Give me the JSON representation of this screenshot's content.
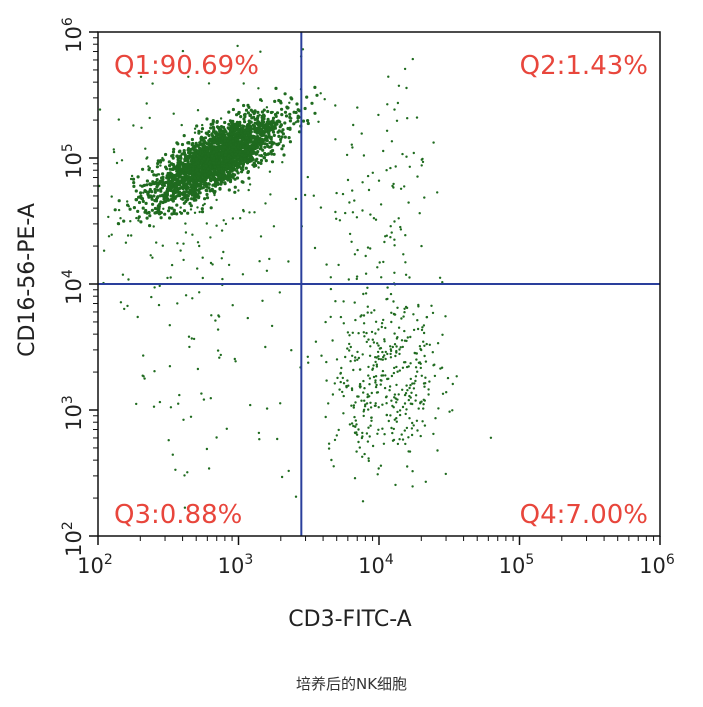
{
  "caption": "培养后的NK细胞",
  "colors": {
    "axis": "#111111",
    "gate": "#2a3f9c",
    "label": "#e8463c",
    "dot": "#1f6b1f",
    "background": "#ffffff"
  },
  "chart_data": {
    "type": "scatter",
    "title": "",
    "xlabel": "CD3-FITC-A",
    "ylabel": "CD16-56-PE-A",
    "x_scale": "log",
    "y_scale": "log",
    "xlim": [
      100,
      1000000
    ],
    "ylim": [
      100,
      1000000
    ],
    "x_ticks": [
      {
        "value": 100,
        "base": "10",
        "exp": "2"
      },
      {
        "value": 1000,
        "base": "10",
        "exp": "3"
      },
      {
        "value": 10000,
        "base": "10",
        "exp": "4"
      },
      {
        "value": 100000,
        "base": "10",
        "exp": "5"
      },
      {
        "value": 1000000,
        "base": "10",
        "exp": "6"
      }
    ],
    "y_ticks": [
      {
        "value": 100,
        "base": "10",
        "exp": "2"
      },
      {
        "value": 1000,
        "base": "10",
        "exp": "3"
      },
      {
        "value": 10000,
        "base": "10",
        "exp": "4"
      },
      {
        "value": 100000,
        "base": "10",
        "exp": "5"
      },
      {
        "value": 1000000,
        "base": "10",
        "exp": "6"
      }
    ],
    "gates": {
      "x": 2800,
      "y": 10000
    },
    "quadrants": [
      {
        "id": "Q1",
        "label": "Q1:90.69%",
        "percent": 90.69,
        "position": "top-left"
      },
      {
        "id": "Q2",
        "label": "Q2:1.43%",
        "percent": 1.43,
        "position": "top-right"
      },
      {
        "id": "Q3",
        "label": "Q3:0.88%",
        "percent": 0.88,
        "position": "bottom-left"
      },
      {
        "id": "Q4",
        "label": "Q4:7.00%",
        "percent": 7.0,
        "position": "bottom-right"
      }
    ],
    "populations": [
      {
        "name": "main-cluster",
        "center_log": [
          2.85,
          5.0
        ],
        "spread_log": [
          0.22,
          0.17
        ],
        "correlation": 0.75,
        "approx_points": 2600
      },
      {
        "name": "q1-scatter",
        "center_log": [
          2.6,
          4.8
        ],
        "spread_log": [
          0.45,
          0.5
        ],
        "correlation": 0.2,
        "approx_points": 230
      },
      {
        "name": "q4-cluster",
        "center_log": [
          4.05,
          3.25
        ],
        "spread_log": [
          0.2,
          0.35
        ],
        "correlation": 0.0,
        "approx_points": 420
      },
      {
        "name": "q2-scatter",
        "center_log": [
          4.0,
          4.6
        ],
        "spread_log": [
          0.22,
          0.45
        ],
        "correlation": 0.0,
        "approx_points": 110
      },
      {
        "name": "q3-scatter",
        "center_log": [
          2.8,
          3.3
        ],
        "spread_log": [
          0.4,
          0.5
        ],
        "correlation": 0.0,
        "approx_points": 70
      }
    ]
  }
}
